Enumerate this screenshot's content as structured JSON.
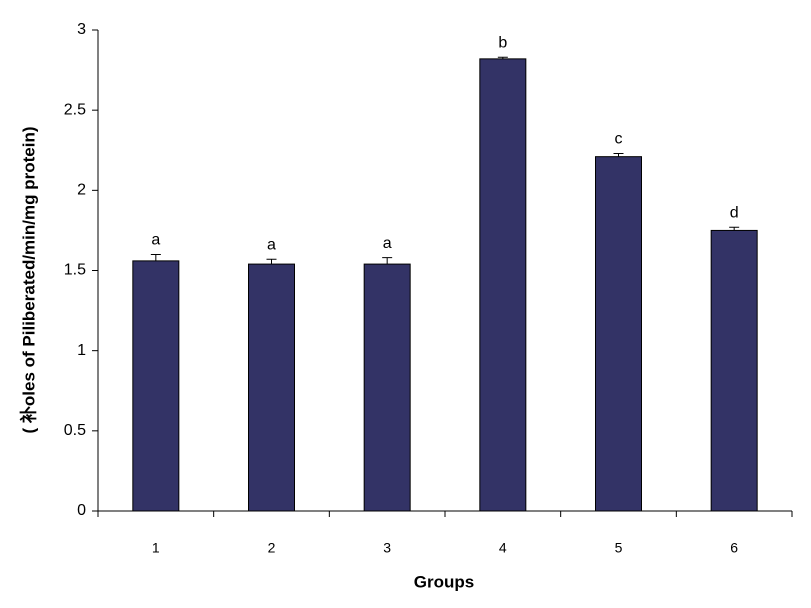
{
  "chart_data": {
    "type": "bar",
    "x_label": "Groups",
    "y_label": "( 补oles of Piliberated/min/mg protein)",
    "categories": [
      "1",
      "2",
      "3",
      "4",
      "5",
      "6"
    ],
    "values": [
      1.56,
      1.54,
      1.54,
      2.82,
      2.21,
      1.75
    ],
    "errors": [
      0.04,
      0.03,
      0.04,
      0.01,
      0.02,
      0.02
    ],
    "annotations": [
      "a",
      "a",
      "a",
      "b",
      "c",
      "d"
    ],
    "color": "#333366",
    "ylim": [
      0,
      3
    ],
    "yticks": [
      0,
      0.5,
      1,
      1.5,
      2,
      2.5,
      3
    ],
    "grid": false
  }
}
